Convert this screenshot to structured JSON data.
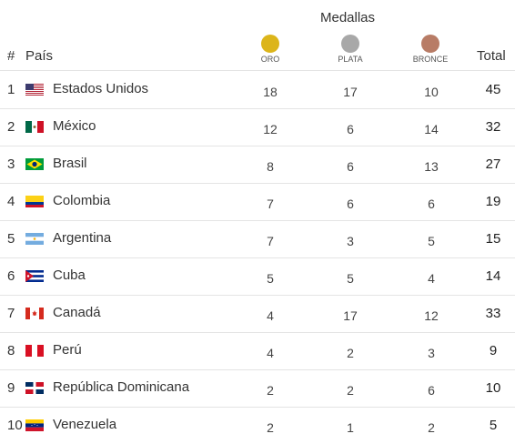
{
  "header": {
    "medallas": "Medallas",
    "hash": "#",
    "pais": "País",
    "total": "Total",
    "gold_label": "ORO",
    "silver_label": "PLATA",
    "bronze_label": "BRONCE"
  },
  "colors": {
    "gold": "#dcb51a",
    "silver": "#a8a8a8",
    "bronze": "#b87c66",
    "rule": "#e4e4e4"
  },
  "rows": [
    {
      "rank": "1",
      "country": "Estados Unidos",
      "flag": "usa-flag-icon",
      "gold": "18",
      "silver": "17",
      "bronze": "10",
      "total": "45"
    },
    {
      "rank": "2",
      "country": "México",
      "flag": "mexico-flag-icon",
      "gold": "12",
      "silver": "6",
      "bronze": "14",
      "total": "32"
    },
    {
      "rank": "3",
      "country": "Brasil",
      "flag": "brazil-flag-icon",
      "gold": "8",
      "silver": "6",
      "bronze": "13",
      "total": "27"
    },
    {
      "rank": "4",
      "country": "Colombia",
      "flag": "colombia-flag-icon",
      "gold": "7",
      "silver": "6",
      "bronze": "6",
      "total": "19"
    },
    {
      "rank": "5",
      "country": "Argentina",
      "flag": "argentina-flag-icon",
      "gold": "7",
      "silver": "3",
      "bronze": "5",
      "total": "15"
    },
    {
      "rank": "6",
      "country": "Cuba",
      "flag": "cuba-flag-icon",
      "gold": "5",
      "silver": "5",
      "bronze": "4",
      "total": "14"
    },
    {
      "rank": "7",
      "country": "Canadá",
      "flag": "canada-flag-icon",
      "gold": "4",
      "silver": "17",
      "bronze": "12",
      "total": "33"
    },
    {
      "rank": "8",
      "country": "Perú",
      "flag": "peru-flag-icon",
      "gold": "4",
      "silver": "2",
      "bronze": "3",
      "total": "9"
    },
    {
      "rank": "9",
      "country": "República Dominicana",
      "flag": "dominican-republic-flag-icon",
      "gold": "2",
      "silver": "2",
      "bronze": "6",
      "total": "10"
    },
    {
      "rank": "10",
      "country": "Venezuela",
      "flag": "venezuela-flag-icon",
      "gold": "2",
      "silver": "1",
      "bronze": "2",
      "total": "5"
    }
  ]
}
